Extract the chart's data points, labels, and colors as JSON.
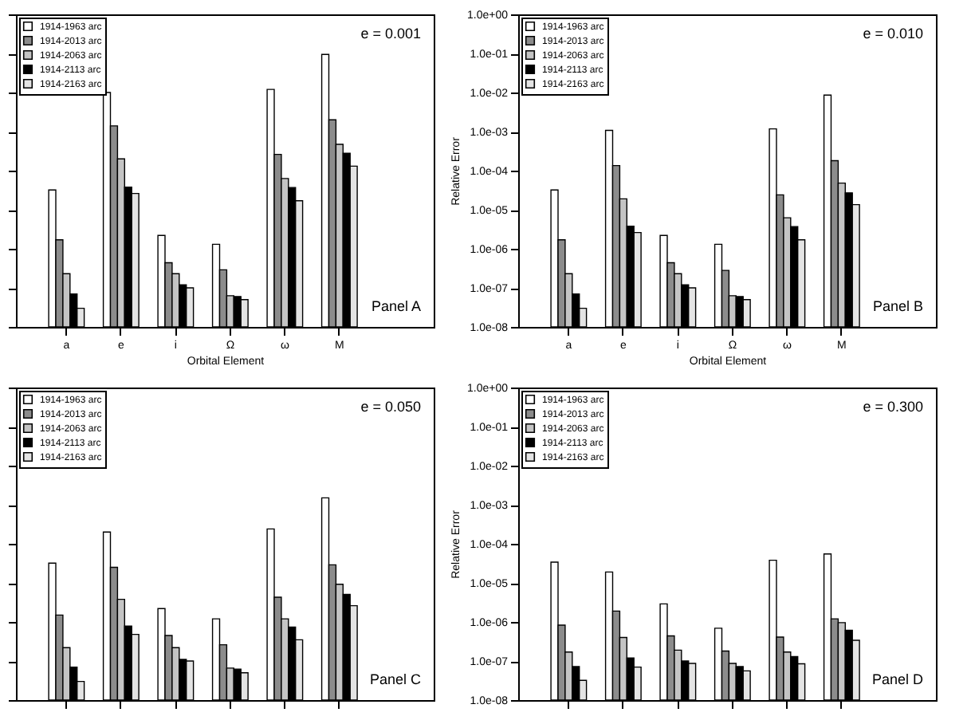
{
  "chart_data": [
    {
      "type": "bar",
      "xlabel": "Orbital Element",
      "categories": [
        "a",
        "e",
        "i",
        "Ω",
        "ω",
        "M"
      ],
      "log": "y",
      "ylim": [
        1e-08,
        1
      ],
      "yticks": [
        {
          "value": 1e-08,
          "label": null
        },
        {
          "value": 1e-07,
          "label": null
        },
        {
          "value": 1e-06,
          "label": null
        },
        {
          "value": 1e-05,
          "label": null
        },
        {
          "value": 0.0001,
          "label": null
        },
        {
          "value": 0.001,
          "label": null
        },
        {
          "value": 0.01,
          "label": null
        },
        {
          "value": 0.1,
          "label": null
        },
        {
          "value": 1,
          "label": null
        }
      ],
      "tick_labels": "x",
      "legend": "top left",
      "annotations": [
        "e = 0.001",
        "Panel A"
      ],
      "series": [
        {
          "name": "1914-1963 arc",
          "color": "#ffffff",
          "values": [
            3.2e-05,
            0.01,
            2.2e-06,
            1.3e-06,
            0.012,
            0.094
          ]
        },
        {
          "name": "1914-2013 arc",
          "color": "#8c8c8c",
          "values": [
            1.7e-06,
            0.0014,
            4.4e-07,
            2.9e-07,
            0.00026,
            0.002
          ]
        },
        {
          "name": "1914-2063 arc",
          "color": "#c4c4c4",
          "values": [
            2.3e-07,
            0.0002,
            2.3e-07,
            6.3e-08,
            6.3e-05,
            0.00047
          ]
        },
        {
          "name": "1914-2113 arc",
          "color": "#000000",
          "values": [
            7e-08,
            3.8e-05,
            1.2e-07,
            6e-08,
            3.7e-05,
            0.00028
          ]
        },
        {
          "name": "1914-2163 arc",
          "color": "#e4e4e4",
          "values": [
            3e-08,
            2.6e-05,
            1e-07,
            5e-08,
            1.7e-05,
            0.00013
          ]
        }
      ]
    },
    {
      "type": "bar",
      "xlabel": "Orbital Element",
      "ylabel": "Relative Error",
      "categories": [
        "a",
        "e",
        "i",
        "Ω",
        "ω",
        "M"
      ],
      "log": "y",
      "ylim": [
        1e-08,
        1
      ],
      "yticks": [
        {
          "value": 1e-08,
          "label": "1.0e-08"
        },
        {
          "value": 1e-07,
          "label": "1.0e-07"
        },
        {
          "value": 1e-06,
          "label": "1.0e-06"
        },
        {
          "value": 1e-05,
          "label": "1.0e-05"
        },
        {
          "value": 0.0001,
          "label": "1.0e-04"
        },
        {
          "value": 0.001,
          "label": "1.0e-03"
        },
        {
          "value": 0.01,
          "label": "1.0e-02"
        },
        {
          "value": 0.1,
          "label": "1.0e-01"
        },
        {
          "value": 1,
          "label": "1.0e+00"
        }
      ],
      "legend": "top left",
      "annotations": [
        "e = 0.010",
        "Panel B"
      ],
      "series": [
        {
          "name": "1914-1963 arc",
          "color": "#ffffff",
          "values": [
            3.2e-05,
            0.00107,
            2.2e-06,
            1.3e-06,
            0.00117,
            0.0086
          ]
        },
        {
          "name": "1914-2013 arc",
          "color": "#8c8c8c",
          "values": [
            1.7e-06,
            0.000135,
            4.4e-07,
            2.8e-07,
            2.4e-05,
            0.00018
          ]
        },
        {
          "name": "1914-2063 arc",
          "color": "#c4c4c4",
          "values": [
            2.3e-07,
            1.9e-05,
            2.3e-07,
            6.3e-08,
            6.2e-06,
            4.8e-05
          ]
        },
        {
          "name": "1914-2113 arc",
          "color": "#000000",
          "values": [
            7e-08,
            3.8e-06,
            1.2e-07,
            6e-08,
            3.7e-06,
            2.7e-05
          ]
        },
        {
          "name": "1914-2163 arc",
          "color": "#e4e4e4",
          "values": [
            3e-08,
            2.6e-06,
            1e-07,
            5e-08,
            1.7e-06,
            1.35e-05
          ]
        }
      ]
    },
    {
      "type": "bar",
      "categories": [
        null,
        null,
        null,
        null,
        null,
        null
      ],
      "log": "y",
      "ylim": [
        1e-08,
        1
      ],
      "yticks": [
        {
          "value": 1e-08,
          "label": null
        },
        {
          "value": 1e-07,
          "label": null
        },
        {
          "value": 1e-06,
          "label": null
        },
        {
          "value": 1e-05,
          "label": null
        },
        {
          "value": 0.0001,
          "label": null
        },
        {
          "value": 0.001,
          "label": null
        },
        {
          "value": 0.01,
          "label": null
        },
        {
          "value": 0.1,
          "label": null
        },
        {
          "value": 1,
          "label": null
        }
      ],
      "tick_labels": false,
      "legend": "top left",
      "annotations": [
        "e = 0.050",
        "Panel C"
      ],
      "series": [
        {
          "name": "1914-1963 arc",
          "color": "#ffffff",
          "values": [
            3.2e-05,
            0.0002,
            2.2e-06,
            1.2e-06,
            0.00024,
            0.0015
          ]
        },
        {
          "name": "1914-2013 arc",
          "color": "#8c8c8c",
          "values": [
            1.5e-06,
            2.5e-05,
            4.5e-07,
            2.6e-07,
            4.3e-06,
            2.9e-05
          ]
        },
        {
          "name": "1914-2063 arc",
          "color": "#c4c4c4",
          "values": [
            2.2e-07,
            3.8e-06,
            2.2e-07,
            6.6e-08,
            1.2e-06,
            9.2e-06
          ]
        },
        {
          "name": "1914-2113 arc",
          "color": "#000000",
          "values": [
            7e-08,
            7.8e-07,
            1.1e-07,
            6.2e-08,
            7.4e-07,
            5.1e-06
          ]
        },
        {
          "name": "1914-2163 arc",
          "color": "#e4e4e4",
          "values": [
            3e-08,
            4.8e-07,
            1e-07,
            5e-08,
            3.5e-07,
            2.6e-06
          ]
        }
      ]
    },
    {
      "type": "bar",
      "ylabel": "Relative Error",
      "categories": [
        null,
        null,
        null,
        null,
        null,
        null
      ],
      "log": "y",
      "ylim": [
        1e-08,
        1
      ],
      "yticks": [
        {
          "value": 1e-08,
          "label": "1.0e-08"
        },
        {
          "value": 1e-07,
          "label": "1.0e-07"
        },
        {
          "value": 1e-06,
          "label": "1.0e-06"
        },
        {
          "value": 1e-05,
          "label": "1.0e-05"
        },
        {
          "value": 0.0001,
          "label": "1.0e-04"
        },
        {
          "value": 0.001,
          "label": "1.0e-03"
        },
        {
          "value": 0.01,
          "label": "1.0e-02"
        },
        {
          "value": 0.1,
          "label": "1.0e-01"
        },
        {
          "value": 1,
          "label": "1.0e+00"
        }
      ],
      "tick_labels": "y",
      "legend": "top left",
      "annotations": [
        "e = 0.300",
        "Panel D"
      ],
      "series": [
        {
          "name": "1914-1963 arc",
          "color": "#ffffff",
          "values": [
            3.4e-05,
            1.9e-05,
            2.9e-06,
            6.9e-07,
            3.8e-05,
            5.5e-05
          ]
        },
        {
          "name": "1914-2013 arc",
          "color": "#8c8c8c",
          "values": [
            8.3e-07,
            1.9e-06,
            4.4e-07,
            1.8e-07,
            4.1e-07,
            1.2e-06
          ]
        },
        {
          "name": "1914-2063 arc",
          "color": "#c4c4c4",
          "values": [
            1.7e-07,
            4e-07,
            1.9e-07,
            8.7e-08,
            1.7e-07,
            9.6e-07
          ]
        },
        {
          "name": "1914-2113 arc",
          "color": "#000000",
          "values": [
            7.2e-08,
            1.2e-07,
            1e-07,
            7.2e-08,
            1.3e-07,
            6.1e-07
          ]
        },
        {
          "name": "1914-2163 arc",
          "color": "#e4e4e4",
          "values": [
            3.2e-08,
            7e-08,
            8.7e-08,
            5.6e-08,
            8.5e-08,
            3.4e-07
          ]
        }
      ]
    }
  ]
}
